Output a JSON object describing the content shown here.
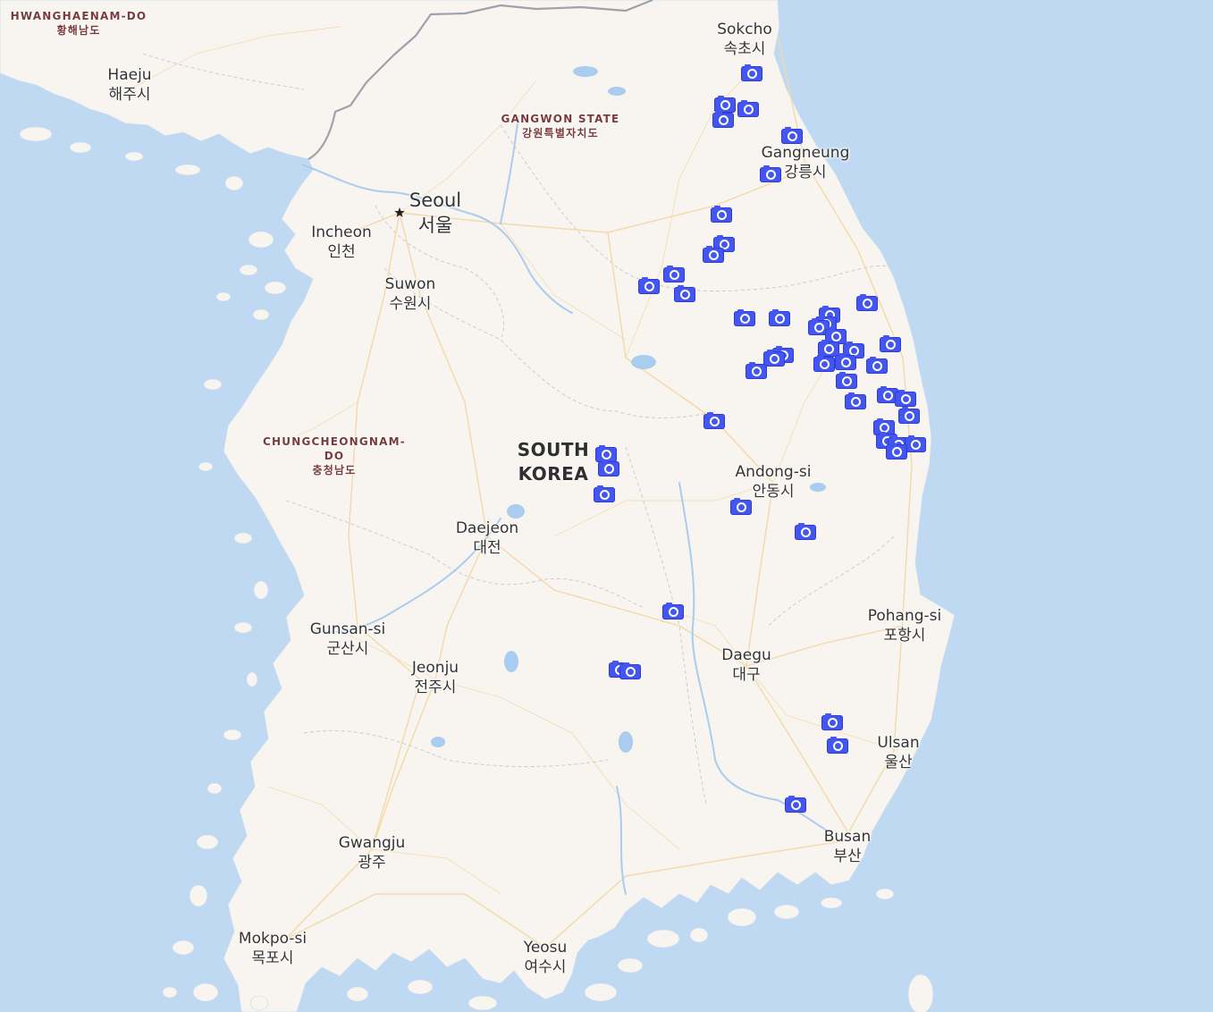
{
  "map": {
    "colors": {
      "sea": "#bfd9f2",
      "land": "#f8f4ef",
      "border": "#9da2ad",
      "road": "#f4d9a8",
      "water": "#a9ccef",
      "marker": "#4456f2",
      "region_label": "#7b3a3a",
      "city_label": "#333333"
    },
    "country_label": {
      "line1": "SOUTH",
      "line2": "KOREA"
    },
    "regions": {
      "hwanghaenam": {
        "en": "HWANGHAENAM-DO",
        "ko": "황해남도"
      },
      "gangwon": {
        "en": "GANGWON STATE",
        "ko": "강원특별자치도"
      },
      "chungcheongnam": {
        "en_line1": "CHUNGCHEONGNAM-",
        "en_line2": "DO",
        "ko": "충청남도"
      }
    },
    "cities": {
      "haeju": {
        "en": "Haeju",
        "ko": "해주시"
      },
      "sokcho": {
        "en": "Sokcho",
        "ko": "속초시"
      },
      "gangneung": {
        "en": "Gangneung",
        "ko": "강릉시"
      },
      "seoul": {
        "en": "Seoul",
        "ko": "서울"
      },
      "incheon": {
        "en": "Incheon",
        "ko": "인천"
      },
      "suwon": {
        "en": "Suwon",
        "ko": "수원시"
      },
      "andong": {
        "en": "Andong-si",
        "ko": "안동시"
      },
      "daejeon": {
        "en": "Daejeon",
        "ko": "대전"
      },
      "pohang": {
        "en": "Pohang-si",
        "ko": "포항시"
      },
      "gunsan": {
        "en": "Gunsan-si",
        "ko": "군산시"
      },
      "jeonju": {
        "en": "Jeonju",
        "ko": "전주시"
      },
      "daegu": {
        "en": "Daegu",
        "ko": "대구"
      },
      "ulsan": {
        "en": "Ulsan",
        "ko": "울산"
      },
      "busan": {
        "en": "Busan",
        "ko": "부산"
      },
      "gwangju": {
        "en": "Gwangju",
        "ko": "광주"
      },
      "mokpo": {
        "en": "Mokpo-si",
        "ko": "목포시"
      },
      "yeosu": {
        "en": "Yeosu",
        "ko": "여수시"
      }
    }
  },
  "markers": {
    "icon": "camera-icon"
  }
}
